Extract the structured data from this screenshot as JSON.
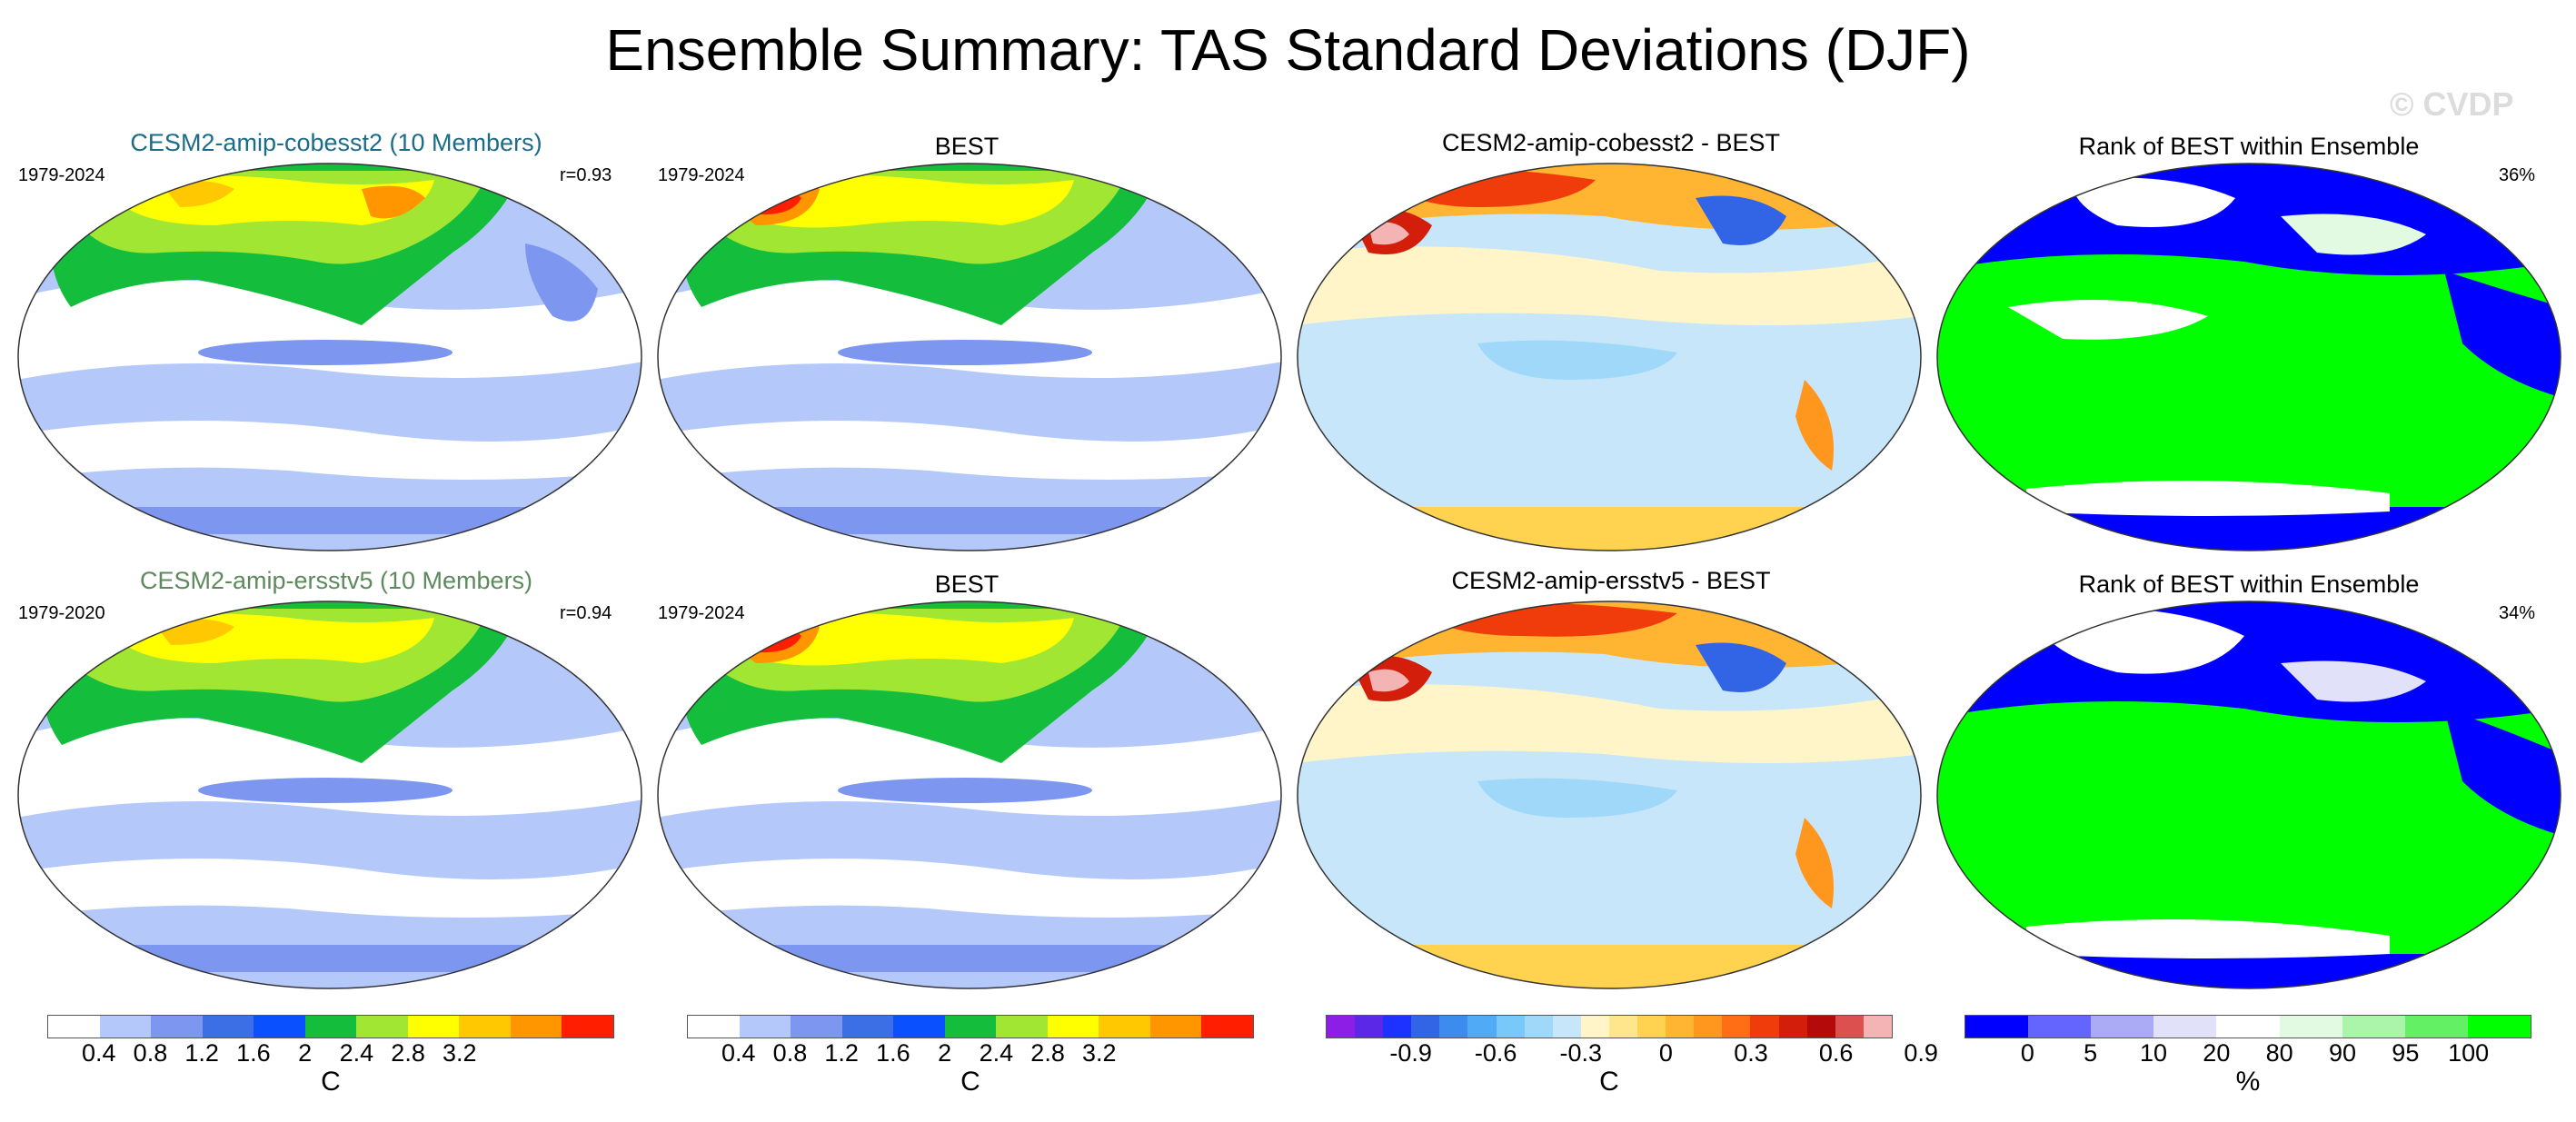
{
  "title": "Ensemble Summary: TAS Standard Deviations (DJF)",
  "watermark": "© CVDP",
  "rows": [
    {
      "model_title": "CESM2-amip-cobesst2 (10 Members)",
      "model_title_color": "#1b6b8a",
      "model_years": "1979-2024",
      "corr": "r=0.93",
      "obs_title": "BEST",
      "obs_years": "1979-2024",
      "diff_title": "CESM2-amip-cobesst2 - BEST",
      "rank_title": "Rank of BEST within Ensemble",
      "rank_pct": "36%"
    },
    {
      "model_title": "CESM2-amip-ersstv5 (10 Members)",
      "model_title_color": "#5d8a5d",
      "model_years": "1979-2020",
      "corr": "r=0.94",
      "obs_title": "BEST",
      "obs_years": "1979-2024",
      "diff_title": "CESM2-amip-ersstv5 - BEST",
      "rank_title": "Rank of BEST within Ensemble",
      "rank_pct": "34%"
    }
  ],
  "colorbars": {
    "std": {
      "colors": [
        "#ffffff",
        "#b4c8fa",
        "#7d96f0",
        "#3c6ee6",
        "#0a50ff",
        "#14be3c",
        "#a0e632",
        "#ffff00",
        "#ffc800",
        "#ff9600",
        "#ff1e00"
      ],
      "ticks": [
        "0.4",
        "0.8",
        "1.2",
        "1.6",
        "2",
        "2.4",
        "2.8",
        "3.2"
      ],
      "unit": "C"
    },
    "diff": {
      "colors": [
        "#8c1ee6",
        "#5a28e6",
        "#1e32ff",
        "#3264e6",
        "#3c8cf0",
        "#50aaf5",
        "#78c8fa",
        "#a0d8fa",
        "#c8e6fa",
        "#fff5c8",
        "#ffe68c",
        "#ffd250",
        "#ffb432",
        "#ff961e",
        "#ff6e14",
        "#f03c0a",
        "#d21e0a",
        "#b40a0a",
        "#dc5050",
        "#f5b4b4"
      ],
      "ticks": [
        "-0.9",
        "-0.6",
        "-0.3",
        "0",
        "0.3",
        "0.6",
        "0.9"
      ],
      "unit": "C"
    },
    "rank": {
      "colors": [
        "#0000ff",
        "#6464ff",
        "#aaaaf5",
        "#e1e1fa",
        "#ffffff",
        "#e1fae1",
        "#aaf5aa",
        "#64f064",
        "#00ff00"
      ],
      "ticks": [
        "0",
        "5",
        "10",
        "20",
        "80",
        "90",
        "95",
        "100"
      ],
      "unit": "%"
    }
  }
}
